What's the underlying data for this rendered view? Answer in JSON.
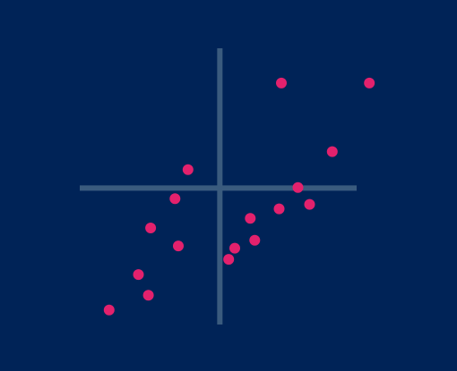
{
  "colors": {
    "background": "#002357",
    "axis": "#3a5b7e",
    "points": "#e3216d"
  },
  "chart_data": {
    "type": "scatter",
    "xlim": [
      -5.06,
      4.94
    ],
    "ylim": [
      -4.86,
      4.98
    ],
    "grid": false,
    "legend": "none",
    "series": [
      {
        "points": [
          [
            -1.15,
            0.66
          ],
          [
            -1.62,
            -0.38
          ],
          [
            -2.5,
            -1.42
          ],
          [
            -1.5,
            -2.06
          ],
          [
            -2.94,
            -3.08
          ],
          [
            -2.58,
            -3.82
          ],
          [
            -4.0,
            -4.34
          ],
          [
            0.32,
            -2.54
          ],
          [
            0.54,
            -2.14
          ],
          [
            1.1,
            -1.08
          ],
          [
            1.26,
            -1.86
          ],
          [
            2.14,
            -0.74
          ],
          [
            2.82,
            0.02
          ],
          [
            3.24,
            -0.58
          ],
          [
            4.06,
            1.3
          ],
          [
            2.22,
            3.74
          ],
          [
            5.4,
            3.74
          ]
        ]
      }
    ]
  }
}
